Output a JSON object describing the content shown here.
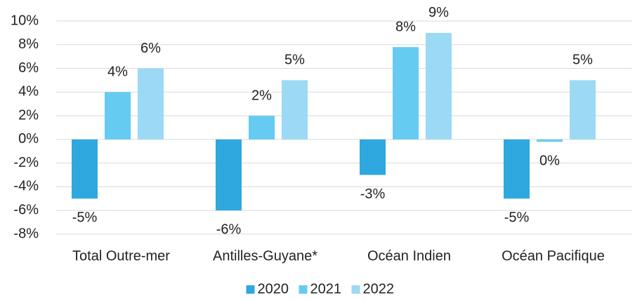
{
  "chart_data": {
    "type": "bar",
    "categories": [
      "Total Outre-mer",
      "Antilles-Guyane*",
      "Océan Indien",
      "Océan Pacifique"
    ],
    "series": [
      {
        "name": "2020",
        "color": "#2ea8de",
        "values": [
          -5,
          -6,
          -3,
          -5
        ],
        "value_labels": [
          "-5%",
          "-6%",
          "-3%",
          "-5%"
        ]
      },
      {
        "name": "2021",
        "color": "#66cbf1",
        "values": [
          4,
          2,
          7.8,
          -0.2
        ],
        "value_labels": [
          "4%",
          "2%",
          "8%",
          "0%"
        ]
      },
      {
        "name": "2022",
        "color": "#9cd9f4",
        "values": [
          6,
          5,
          9,
          5
        ],
        "value_labels": [
          "6%",
          "5%",
          "9%",
          "5%"
        ]
      }
    ],
    "ylim": [
      -8,
      10
    ],
    "yticks": [
      {
        "value": -8,
        "label": "-8%"
      },
      {
        "value": -6,
        "label": "-6%"
      },
      {
        "value": -4,
        "label": "-4%"
      },
      {
        "value": -2,
        "label": "-2%"
      },
      {
        "value": 0,
        "label": "0%"
      },
      {
        "value": 2,
        "label": "2%"
      },
      {
        "value": 4,
        "label": "4%"
      },
      {
        "value": 6,
        "label": "6%"
      },
      {
        "value": 8,
        "label": "8%"
      },
      {
        "value": 10,
        "label": "10%"
      }
    ],
    "grid": true,
    "legend": "bottom"
  }
}
